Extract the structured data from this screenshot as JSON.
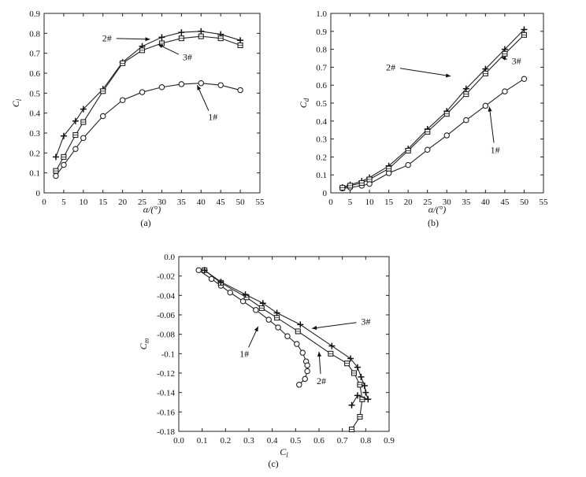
{
  "chart_data": [
    {
      "type": "line",
      "caption": "(a)",
      "xlabel": "α/(°)",
      "ylabel": "C_l",
      "xlim": [
        0,
        55
      ],
      "ylim": [
        0,
        0.9
      ],
      "xticks": [
        "0",
        "5",
        "10",
        "15",
        "20",
        "25",
        "30",
        "35",
        "40",
        "45",
        "50",
        "55"
      ],
      "yticks": [
        "0",
        "0.1",
        "0.2",
        "0.3",
        "0.4",
        "0.5",
        "0.6",
        "0.7",
        "0.8",
        "0.9"
      ],
      "series": [
        {
          "name": "1#",
          "marker": "circle",
          "x": [
            3,
            5,
            8,
            10,
            15,
            20,
            25,
            30,
            35,
            40,
            45,
            50
          ],
          "y": [
            0.085,
            0.14,
            0.22,
            0.275,
            0.385,
            0.465,
            0.505,
            0.53,
            0.545,
            0.55,
            0.54,
            0.515
          ]
        },
        {
          "name": "2#",
          "marker": "plus",
          "x": [
            3,
            5,
            8,
            10,
            15,
            20,
            25,
            30,
            35,
            40,
            45,
            50
          ],
          "y": [
            0.18,
            0.285,
            0.36,
            0.42,
            0.52,
            0.655,
            0.735,
            0.78,
            0.805,
            0.81,
            0.795,
            0.765
          ]
        },
        {
          "name": "3#",
          "marker": "square",
          "x": [
            3,
            5,
            8,
            10,
            15,
            20,
            25,
            30,
            35,
            40,
            45,
            50
          ],
          "y": [
            0.11,
            0.18,
            0.29,
            0.355,
            0.51,
            0.65,
            0.715,
            0.75,
            0.775,
            0.785,
            0.775,
            0.74
          ]
        }
      ],
      "annotations": [
        {
          "text": "2#",
          "x": 16,
          "y": 0.775,
          "tx": 27,
          "ty": 0.77
        },
        {
          "text": "3#",
          "x": 36.5,
          "y": 0.68,
          "tx": 29,
          "ty": 0.745
        },
        {
          "text": "1#",
          "x": 43,
          "y": 0.38,
          "tx": 39,
          "ty": 0.54
        }
      ]
    },
    {
      "type": "line",
      "caption": "(b)",
      "xlabel": "α/(°)",
      "ylabel": "C_d",
      "xlim": [
        0,
        55
      ],
      "ylim": [
        0,
        1.0
      ],
      "xticks": [
        "0",
        "5",
        "10",
        "15",
        "20",
        "25",
        "30",
        "35",
        "40",
        "45",
        "50",
        "55"
      ],
      "yticks": [
        "0",
        "0.1",
        "0.2",
        "0.3",
        "0.4",
        "0.5",
        "0.6",
        "0.7",
        "0.8",
        "0.9",
        "1.0"
      ],
      "series": [
        {
          "name": "1#",
          "marker": "circle",
          "x": [
            3,
            5,
            8,
            10,
            15,
            20,
            25,
            30,
            35,
            40,
            45,
            50
          ],
          "y": [
            0.025,
            0.03,
            0.04,
            0.05,
            0.11,
            0.155,
            0.24,
            0.32,
            0.405,
            0.485,
            0.565,
            0.635
          ]
        },
        {
          "name": "2#",
          "marker": "plus",
          "x": [
            3,
            5,
            8,
            10,
            15,
            20,
            25,
            30,
            35,
            40,
            45,
            50
          ],
          "y": [
            0.03,
            0.045,
            0.065,
            0.085,
            0.15,
            0.245,
            0.355,
            0.455,
            0.58,
            0.69,
            0.8,
            0.91
          ]
        },
        {
          "name": "3#",
          "marker": "square",
          "x": [
            3,
            5,
            8,
            10,
            15,
            20,
            25,
            30,
            35,
            40,
            45,
            50
          ],
          "y": [
            0.028,
            0.04,
            0.055,
            0.075,
            0.135,
            0.235,
            0.34,
            0.44,
            0.55,
            0.665,
            0.775,
            0.88
          ]
        }
      ],
      "annotations": [
        {
          "text": "2#",
          "x": 15.5,
          "y": 0.7,
          "tx": 31,
          "ty": 0.65
        },
        {
          "text": "3#",
          "x": 48,
          "y": 0.735,
          "tx": 44,
          "ty": 0.755
        },
        {
          "text": "1#",
          "x": 42.5,
          "y": 0.24,
          "tx": 41,
          "ty": 0.48
        }
      ]
    },
    {
      "type": "line",
      "caption": "(c)",
      "xlabel": "C_l",
      "ylabel": "C_m",
      "xlim": [
        0,
        0.9
      ],
      "ylim": [
        -0.18,
        0.0
      ],
      "xticks": [
        "0.0",
        "0.1",
        "0.2",
        "0.3",
        "0.4",
        "0.5",
        "0.6",
        "0.7",
        "0.8",
        "0.9"
      ],
      "yticks": [
        "0.0",
        "-0.02",
        "-0.04",
        "-0.06",
        "-0.08",
        "-0.1",
        "-0.12",
        "-0.14",
        "-0.16",
        "-0.18"
      ],
      "series": [
        {
          "name": "1#",
          "marker": "circle",
          "x": [
            0.085,
            0.14,
            0.18,
            0.22,
            0.275,
            0.33,
            0.385,
            0.425,
            0.465,
            0.505,
            0.53,
            0.545,
            0.55,
            0.55,
            0.54,
            0.515
          ],
          "y": [
            -0.014,
            -0.023,
            -0.03,
            -0.037,
            -0.046,
            -0.055,
            -0.065,
            -0.073,
            -0.082,
            -0.09,
            -0.099,
            -0.108,
            -0.112,
            -0.118,
            -0.126,
            -0.132
          ]
        },
        {
          "name": "2#",
          "marker": "square",
          "x": [
            0.11,
            0.18,
            0.29,
            0.355,
            0.42,
            0.51,
            0.65,
            0.72,
            0.75,
            0.775,
            0.785,
            0.775,
            0.74
          ],
          "y": [
            -0.014,
            -0.027,
            -0.042,
            -0.053,
            -0.063,
            -0.077,
            -0.1,
            -0.11,
            -0.12,
            -0.132,
            -0.147,
            -0.165,
            -0.178
          ]
        },
        {
          "name": "3#",
          "marker": "plus",
          "x": [
            0.11,
            0.18,
            0.285,
            0.36,
            0.42,
            0.52,
            0.655,
            0.735,
            0.765,
            0.78,
            0.795,
            0.8,
            0.81,
            0.765,
            0.74
          ],
          "y": [
            -0.014,
            -0.026,
            -0.039,
            -0.048,
            -0.058,
            -0.07,
            -0.092,
            -0.105,
            -0.114,
            -0.124,
            -0.133,
            -0.14,
            -0.147,
            -0.143,
            -0.153
          ]
        }
      ],
      "annotations": [
        {
          "text": "3#",
          "x": 0.8,
          "y": -0.067,
          "tx": 0.57,
          "ty": -0.074
        },
        {
          "text": "1#",
          "x": 0.28,
          "y": -0.1,
          "tx": 0.34,
          "ty": -0.072
        },
        {
          "text": "2#",
          "x": 0.61,
          "y": -0.128,
          "tx": 0.6,
          "ty": -0.098
        }
      ]
    }
  ]
}
